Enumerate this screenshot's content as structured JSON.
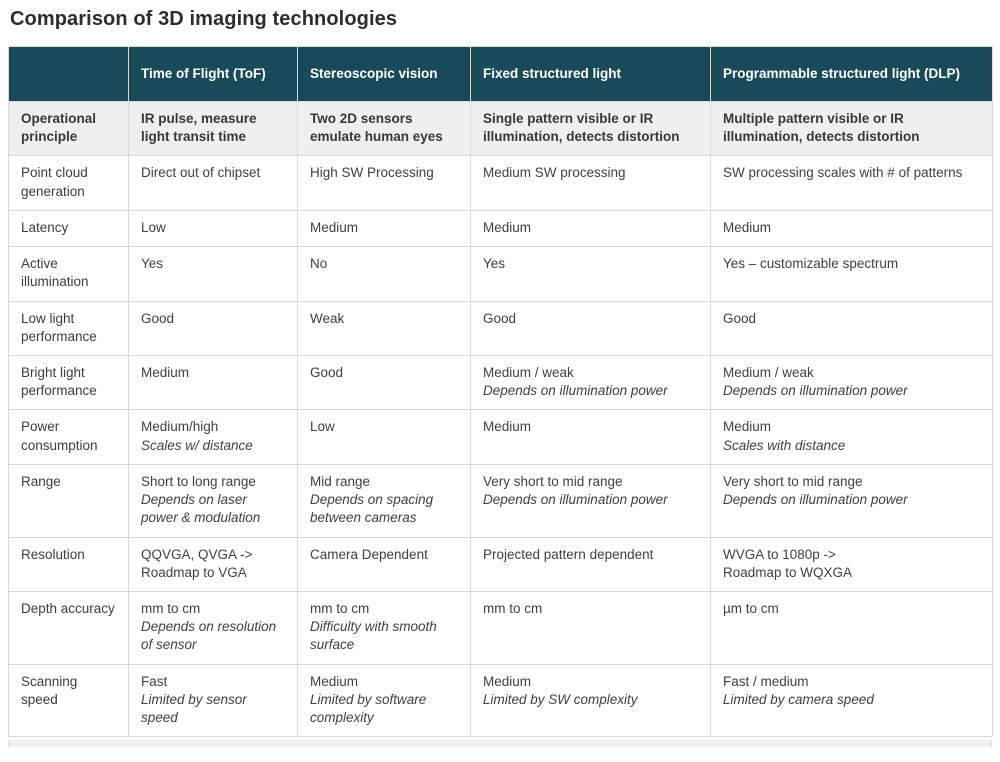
{
  "title": "Comparison of 3D imaging technologies",
  "colors": {
    "header_bg": "#194a5a",
    "header_text": "#ffffff",
    "subheader_row_bg": "#efefef",
    "body_text": "#404040",
    "border": "#d9d9d9"
  },
  "table": {
    "columns": [
      "",
      "Time of Flight (ToF)",
      "Stereoscopic vision",
      "Fixed structured light",
      "Programmable structured light (DLP)"
    ],
    "rows": [
      {
        "label": "Operational principle",
        "emphasis": true,
        "cells": [
          {
            "main": "IR pulse, measure light transit time"
          },
          {
            "main": "Two 2D sensors emulate human eyes"
          },
          {
            "main": "Single pattern visible or IR illumination, detects distortion"
          },
          {
            "main": "Multiple pattern visible or IR illumination, detects distortion"
          }
        ]
      },
      {
        "label": "Point cloud generation",
        "emphasis": false,
        "cells": [
          {
            "main": "Direct out of chipset"
          },
          {
            "main": "High SW Processing"
          },
          {
            "main": "Medium SW processing"
          },
          {
            "main": "SW processing scales with # of patterns"
          }
        ]
      },
      {
        "label": "Latency",
        "emphasis": false,
        "cells": [
          {
            "main": "Low"
          },
          {
            "main": "Medium"
          },
          {
            "main": "Medium"
          },
          {
            "main": "Medium"
          }
        ]
      },
      {
        "label": "Active illumination",
        "emphasis": false,
        "cells": [
          {
            "main": "Yes"
          },
          {
            "main": "No"
          },
          {
            "main": "Yes"
          },
          {
            "main": "Yes – customizable spectrum"
          }
        ]
      },
      {
        "label": "Low light performance",
        "emphasis": false,
        "cells": [
          {
            "main": "Good"
          },
          {
            "main": "Weak"
          },
          {
            "main": "Good"
          },
          {
            "main": "Good"
          }
        ]
      },
      {
        "label": "Bright light performance",
        "emphasis": false,
        "cells": [
          {
            "main": "Medium"
          },
          {
            "main": "Good"
          },
          {
            "main": "Medium / weak",
            "note": "Depends on illumination power"
          },
          {
            "main": "Medium / weak",
            "note": "Depends on illumination power"
          }
        ]
      },
      {
        "label": "Power consumption",
        "emphasis": false,
        "cells": [
          {
            "main": "Medium/high",
            "note": "Scales w/ distance"
          },
          {
            "main": "Low"
          },
          {
            "main": "Medium"
          },
          {
            "main": "Medium",
            "note": "Scales with distance"
          }
        ]
      },
      {
        "label": "Range",
        "emphasis": false,
        "cells": [
          {
            "main": "Short to long range",
            "note": "Depends on laser power & modulation"
          },
          {
            "main": "Mid range",
            "note": "Depends on spacing between cameras"
          },
          {
            "main": "Very short to mid range",
            "note": "Depends on illumination power"
          },
          {
            "main": "Very short to mid range",
            "note": "Depends on illumination power"
          }
        ]
      },
      {
        "label": "Resolution",
        "emphasis": false,
        "cells": [
          {
            "main": "QQVGA, QVGA ->\nRoadmap to VGA"
          },
          {
            "main": "Camera Dependent"
          },
          {
            "main": "Projected pattern dependent"
          },
          {
            "main": "WVGA to 1080p ->\nRoadmap to WQXGA"
          }
        ]
      },
      {
        "label": "Depth accuracy",
        "emphasis": false,
        "cells": [
          {
            "main": "mm to cm",
            "note": "Depends on resolution of sensor"
          },
          {
            "main": "mm to cm",
            "note": "Difficulty with smooth surface"
          },
          {
            "main": "mm to cm"
          },
          {
            "main": "µm to cm"
          }
        ]
      },
      {
        "label": "Scanning speed",
        "emphasis": false,
        "cells": [
          {
            "main": "Fast",
            "note": "Limited by sensor speed"
          },
          {
            "main": "Medium",
            "note": "Limited by software complexity"
          },
          {
            "main": "Medium",
            "note": "Limited by SW complexity"
          },
          {
            "main": "Fast / medium",
            "note": "Limited by camera speed"
          }
        ]
      }
    ]
  }
}
